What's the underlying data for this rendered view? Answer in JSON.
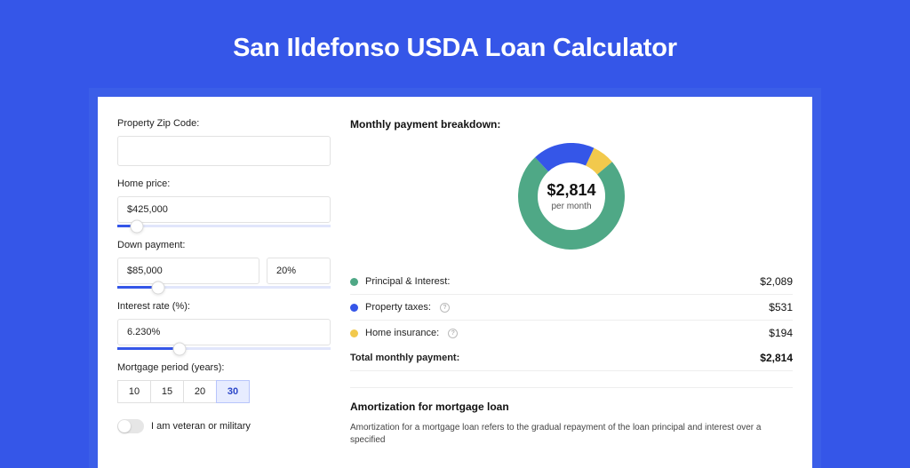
{
  "header": {
    "title": "San Ildefonso USDA Loan Calculator"
  },
  "colors": {
    "page_bg": "#3556e8",
    "card_bg": "#ffffff",
    "wrap_bg": "#3b5ee8",
    "input_border": "#e2e2e2",
    "slider_track": "#e1e6fb",
    "slider_fill": "#3556e8",
    "period_sel_bg": "#e7ecff"
  },
  "inputs": {
    "zip": {
      "label": "Property Zip Code:",
      "value": ""
    },
    "home_price": {
      "label": "Home price:",
      "value": "$425,000",
      "slider_pct": 9
    },
    "down_payment": {
      "label": "Down payment:",
      "value": "$85,000",
      "pct": "20%",
      "slider_pct": 19
    },
    "rate": {
      "label": "Interest rate (%):",
      "value": "6.230%",
      "slider_pct": 29
    },
    "period": {
      "label": "Mortgage period (years):",
      "options": [
        "10",
        "15",
        "20",
        "30"
      ],
      "selected": "30"
    },
    "veteran": {
      "label": "I am veteran or military",
      "checked": false
    }
  },
  "breakdown": {
    "title": "Monthly payment breakdown:",
    "donut": {
      "center_amount": "$2,814",
      "center_label": "per month",
      "size": 120,
      "thickness": 22,
      "background_color": "#ffffff",
      "slices": [
        {
          "key": "principal",
          "pct": 74.2,
          "color": "#4fa886"
        },
        {
          "key": "tax",
          "pct": 18.9,
          "color": "#3556e8"
        },
        {
          "key": "insurance",
          "pct": 6.9,
          "color": "#f2c94c"
        }
      ]
    },
    "rows": [
      {
        "color": "#4fa886",
        "name": "Principal & Interest:",
        "value": "$2,089",
        "info": false
      },
      {
        "color": "#3556e8",
        "name": "Property taxes:",
        "value": "$531",
        "info": true
      },
      {
        "color": "#f2c94c",
        "name": "Home insurance:",
        "value": "$194",
        "info": true
      }
    ],
    "total": {
      "name": "Total monthly payment:",
      "value": "$2,814"
    }
  },
  "amortization": {
    "title": "Amortization for mortgage loan",
    "body": "Amortization for a mortgage loan refers to the gradual repayment of the loan principal and interest over a specified"
  }
}
